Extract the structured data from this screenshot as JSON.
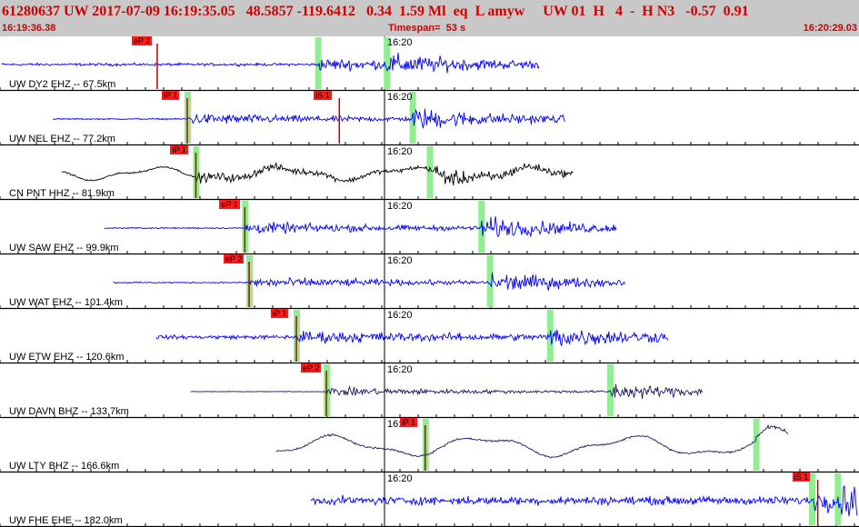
{
  "header": {
    "event_line": "61280637 UW 2017-07-09 16:19:35.05   48.5857 -119.6412   0.34  1.59 Ml  eq  L amyw     UW 01  H   4  -  H N3   -0.57  0.91",
    "start_time": "16:19:36.38",
    "timespan": "Timespan=  53 s",
    "end_time": "16:20:29.03"
  },
  "colors": {
    "header_bg": "#c8c8c8",
    "header_text": "#d00000",
    "trace_blue": "#0000ff",
    "trace_black": "#000000",
    "trace_navy": "#1a1a66",
    "pick_red": "#ff1a1a",
    "window_green": "#90ee90"
  },
  "minute_label": "16:20",
  "traces": [
    {
      "label": "UW DY2 EHZ -- 67.5km",
      "color": "#0000ff",
      "start": 0.0,
      "end": 0.67,
      "picks": [
        {
          "text": "eP 2",
          "pos": 0.183
        }
      ],
      "onsets": [
        0.37,
        0.45
      ],
      "amp": 0.55,
      "noise": 0.08,
      "mode": "quake"
    },
    {
      "label": "UW NEL EHZ -- 77.2km",
      "color": "#0000ff",
      "start": 0.03,
      "end": 0.7,
      "picks": [
        {
          "text": "iP 1",
          "pos": 0.218
        },
        {
          "text": "iS 1",
          "pos": 0.395
        }
      ],
      "onsets": [
        0.218,
        0.48
      ],
      "amp": 0.6,
      "noise": 0.04,
      "mode": "quake"
    },
    {
      "label": "CN PNT HHZ -- 81.9km",
      "color": "#000000",
      "start": 0.04,
      "end": 0.71,
      "picks": [
        {
          "text": "iP 1",
          "pos": 0.228
        }
      ],
      "onsets": [
        0.228,
        0.5
      ],
      "amp": 0.45,
      "noise": 0.05,
      "mode": "wave"
    },
    {
      "label": "UW SAW EHZ -- 99.9km",
      "color": "#0000ff",
      "start": 0.09,
      "end": 0.76,
      "picks": [
        {
          "text": "eP 1",
          "pos": 0.285
        }
      ],
      "onsets": [
        0.285,
        0.56
      ],
      "amp": 0.6,
      "noise": 0.04,
      "mode": "quake"
    },
    {
      "label": "UW WAT EHZ -- 101.4km",
      "color": "#0000ff",
      "start": 0.1,
      "end": 0.77,
      "picks": [
        {
          "text": "eP 2",
          "pos": 0.29
        }
      ],
      "onsets": [
        0.29,
        0.57
      ],
      "amp": 0.55,
      "noise": 0.04,
      "mode": "quake"
    },
    {
      "label": "UW ETW EHZ -- 120.6km",
      "color": "#0000ff",
      "start": 0.15,
      "end": 0.82,
      "picks": [
        {
          "text": "iP 1",
          "pos": 0.345
        }
      ],
      "onsets": [
        0.345,
        0.64
      ],
      "amp": 0.5,
      "noise": 0.12,
      "mode": "quake"
    },
    {
      "label": "UW DAVN BHZ -- 133.7km",
      "color": "#1a1a66",
      "start": 0.19,
      "end": 0.86,
      "picks": [
        {
          "text": "eP 2",
          "pos": 0.38
        }
      ],
      "onsets": [
        0.38,
        0.71
      ],
      "amp": 0.45,
      "noise": 0.02,
      "mode": "quake"
    },
    {
      "label": "UW LTY BHZ -- 166.6km",
      "color": "#1a1a66",
      "start": 0.29,
      "end": 0.96,
      "picks": [
        {
          "text": "iP 1",
          "pos": 0.495
        }
      ],
      "onsets": [
        0.495,
        0.88
      ],
      "amp": 0.5,
      "noise": 0.06,
      "mode": "longwave"
    },
    {
      "label": "UW FHE EHE -- 182.0km",
      "color": "#0000ff",
      "start": 0.33,
      "end": 1.0,
      "picks": [
        {
          "text": "iS 1",
          "pos": 0.952
        }
      ],
      "onsets": [
        0.945,
        0.975
      ],
      "amp": 0.7,
      "noise": 0.25,
      "mode": "quake"
    }
  ]
}
